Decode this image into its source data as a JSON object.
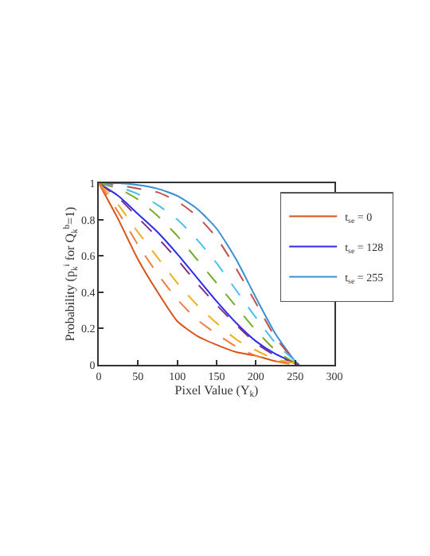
{
  "chart_data": {
    "type": "line",
    "xlabel": "Pixel Value (Y$_{k}$)",
    "ylabel": "Probability (p$_{k}$$^{i}$ for Q$_{k}$$^{b}$=1)",
    "x": [
      0,
      25,
      50,
      75,
      100,
      125,
      150,
      175,
      200,
      225,
      250,
      255
    ],
    "xlim": [
      0,
      300
    ],
    "xticks": [
      0,
      50,
      100,
      150,
      200,
      250,
      300
    ],
    "ylim": [
      0,
      1
    ],
    "yticks": [
      0,
      0.2,
      0.4,
      0.6,
      0.8,
      1
    ],
    "legend": "top right",
    "marker": "none",
    "series": [
      {
        "name": "t$_{se}$ = 0",
        "color": "#d95319",
        "line_style": "solid",
        "values": [
          1,
          0.8,
          0.58,
          0.4,
          0.24,
          0.16,
          0.11,
          0.07,
          0.05,
          0.02,
          0.01,
          0
        ]
      },
      {
        "name": "t$_{se}$ = 128",
        "color": "#2b2bf0",
        "line_style": "solid",
        "values": [
          1,
          0.93,
          0.83,
          0.73,
          0.61,
          0.48,
          0.35,
          0.23,
          0.13,
          0.06,
          0.01,
          0
        ]
      },
      {
        "name": "t$_{se}$ = 255",
        "color": "#3a8fd0",
        "line_style": "solid",
        "values": [
          1,
          1,
          0.99,
          0.97,
          0.93,
          0.86,
          0.75,
          0.58,
          0.37,
          0.17,
          0.02,
          0
        ]
      },
      {
        "color": "#c0504d",
        "line_style": "dashed",
        "values": [
          1,
          0.99,
          0.97,
          0.95,
          0.9,
          0.82,
          0.7,
          0.53,
          0.34,
          0.15,
          0.02,
          0
        ]
      },
      {
        "color": "#4dbeee",
        "line_style": "dashed",
        "values": [
          1,
          0.98,
          0.94,
          0.88,
          0.8,
          0.69,
          0.56,
          0.41,
          0.26,
          0.12,
          0.02,
          0
        ]
      },
      {
        "color": "#77ac30",
        "line_style": "dashed",
        "values": [
          1,
          0.97,
          0.91,
          0.82,
          0.71,
          0.58,
          0.45,
          0.32,
          0.19,
          0.08,
          0.01,
          0
        ]
      },
      {
        "color": "#7e2f8e",
        "line_style": "dashed",
        "values": [
          1,
          0.92,
          0.81,
          0.7,
          0.58,
          0.45,
          0.33,
          0.22,
          0.12,
          0.05,
          0.01,
          0
        ]
      },
      {
        "color": "#edb120",
        "line_style": "dashed",
        "values": [
          1,
          0.88,
          0.73,
          0.59,
          0.45,
          0.33,
          0.23,
          0.14,
          0.08,
          0.03,
          0.01,
          0
        ]
      },
      {
        "color": "#f08040",
        "line_style": "dashed",
        "values": [
          1,
          0.84,
          0.66,
          0.5,
          0.36,
          0.25,
          0.17,
          0.1,
          0.05,
          0.02,
          0,
          0
        ]
      }
    ]
  }
}
